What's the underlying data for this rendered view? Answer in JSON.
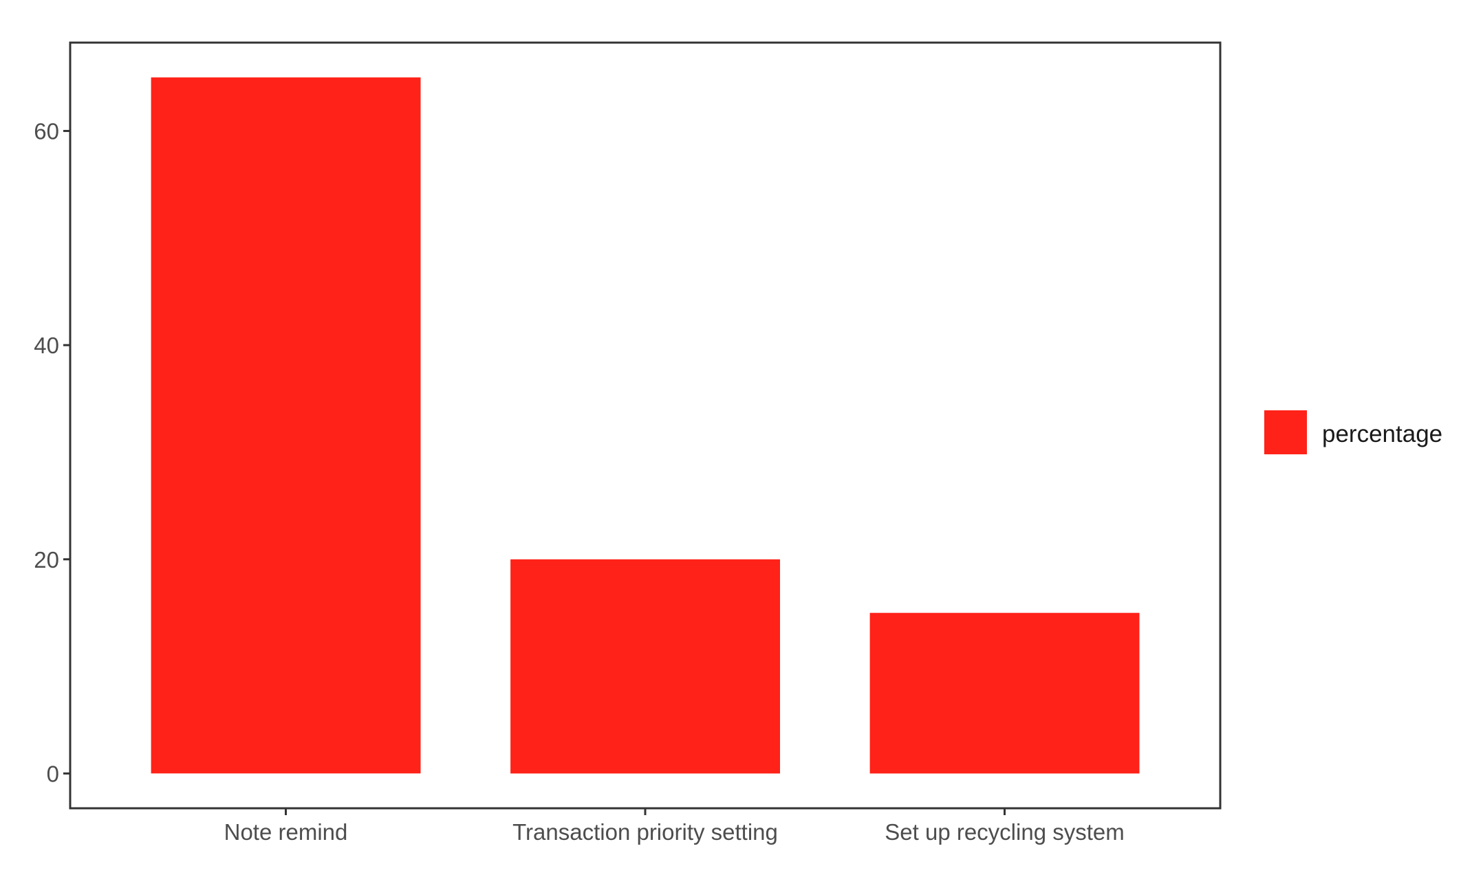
{
  "chart_data": {
    "type": "bar",
    "categories": [
      "Note remind",
      "Transaction priority setting",
      "Set up recycling system"
    ],
    "series": [
      {
        "name": "percentage",
        "values": [
          65,
          20,
          15
        ]
      }
    ],
    "title": "",
    "xlabel": "",
    "ylabel": "",
    "ylim": [
      -3.25,
      68.25
    ],
    "yticks": [
      0,
      20,
      40,
      60
    ],
    "ytick_labels": [
      "0",
      "20",
      "40",
      "60"
    ],
    "grid": false,
    "legend": {
      "position": "right",
      "entries": [
        "percentage"
      ]
    },
    "colors": {
      "bar": "#ff2218",
      "panel_border": "#333333",
      "tick": "#333333"
    }
  }
}
